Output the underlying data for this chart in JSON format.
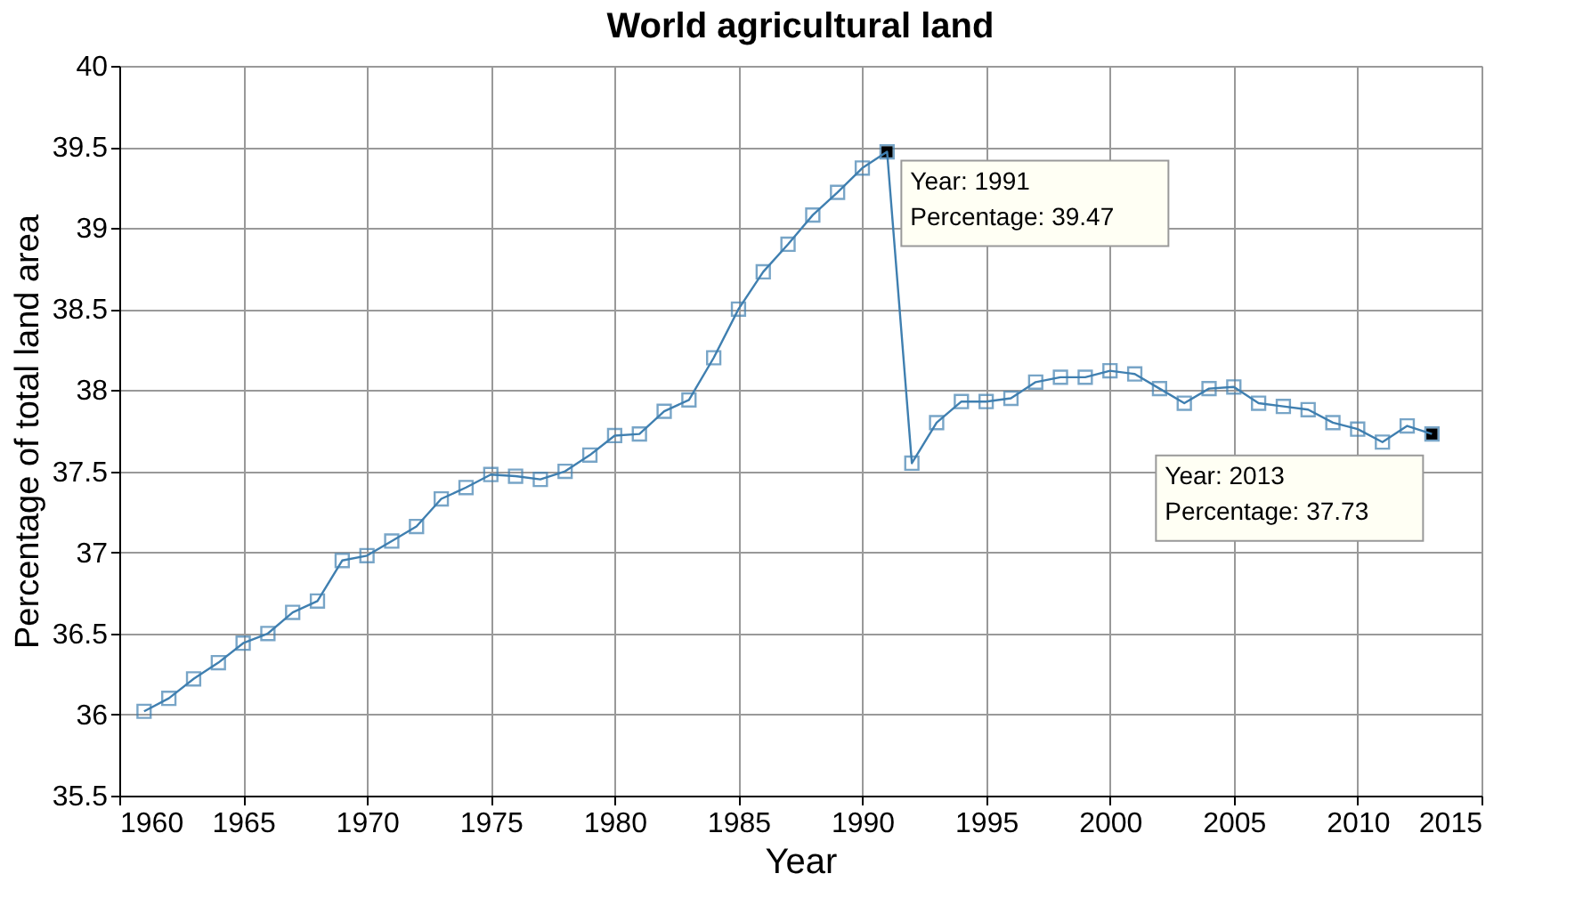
{
  "chart_data": {
    "type": "line",
    "title": "World agricultural land",
    "xlabel": "Year",
    "ylabel": "Percentage of total land area",
    "x": [
      1961,
      1962,
      1963,
      1964,
      1965,
      1966,
      1967,
      1968,
      1969,
      1970,
      1971,
      1972,
      1973,
      1974,
      1975,
      1976,
      1977,
      1978,
      1979,
      1980,
      1981,
      1982,
      1983,
      1984,
      1985,
      1986,
      1987,
      1988,
      1989,
      1990,
      1991,
      1992,
      1993,
      1994,
      1995,
      1996,
      1997,
      1998,
      1999,
      2000,
      2001,
      2002,
      2003,
      2004,
      2005,
      2006,
      2007,
      2008,
      2009,
      2010,
      2011,
      2012,
      2013
    ],
    "series": [
      {
        "color": "#3f7fb0",
        "values": [
          36.02,
          36.1,
          36.22,
          36.32,
          36.44,
          36.5,
          36.63,
          36.7,
          36.95,
          36.98,
          37.07,
          37.16,
          37.33,
          37.4,
          37.48,
          37.47,
          37.45,
          37.5,
          37.6,
          37.72,
          37.73,
          37.87,
          37.94,
          38.2,
          38.5,
          38.73,
          38.9,
          39.08,
          39.22,
          39.37,
          39.47,
          37.55,
          37.8,
          37.93,
          37.93,
          37.95,
          38.05,
          38.08,
          38.08,
          38.12,
          38.1,
          38.01,
          37.92,
          38.01,
          38.02,
          37.92,
          37.9,
          37.88,
          37.8,
          37.76,
          37.68,
          37.78,
          37.73
        ]
      }
    ],
    "xlim": [
      1960,
      2015
    ],
    "xticks": [
      1960,
      1965,
      1970,
      1975,
      1980,
      1985,
      1990,
      1995,
      2000,
      2005,
      2010,
      2015
    ],
    "ylim": [
      35.5,
      40
    ],
    "yticks": [
      35.5,
      36,
      36.5,
      37,
      37.5,
      38,
      38.5,
      39,
      39.5,
      40
    ],
    "grid": true,
    "marker": "square",
    "line_style": "solid",
    "annotations": [
      {
        "text": "Year: 1991\nPercentage: 39.47",
        "x": 1991,
        "y": 39.47
      },
      {
        "text": "Year: 2013\nPercentage: 37.73",
        "x": 2013,
        "y": 37.73
      }
    ]
  }
}
